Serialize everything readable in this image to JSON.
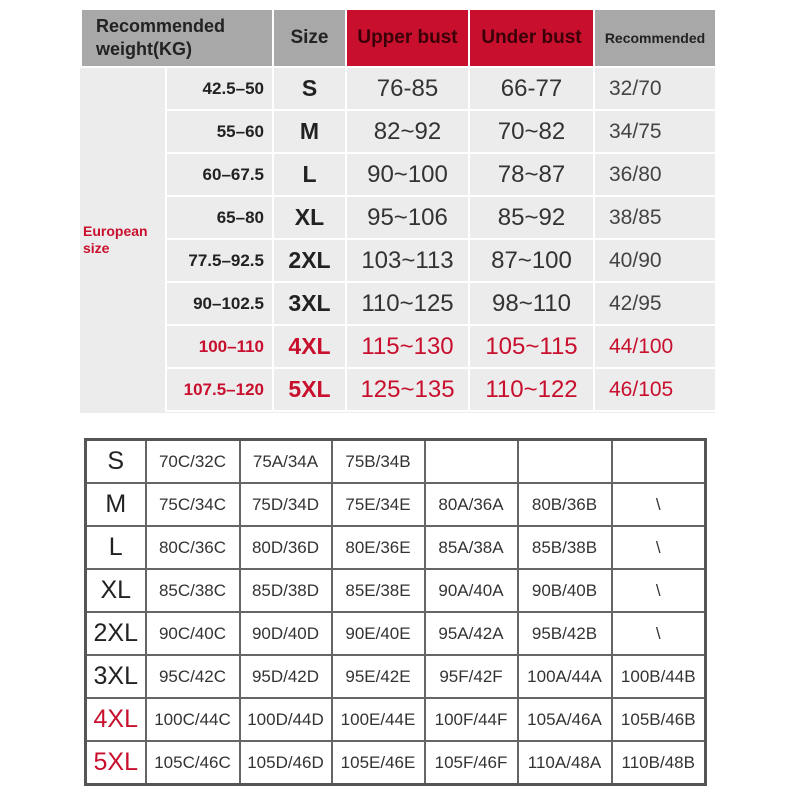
{
  "size_chart": {
    "headers": {
      "weight": "Recommended weight(KG)",
      "size": "Size",
      "upper_bust": "Upper bust",
      "under_bust": "Under bust",
      "recommended": "Recommended"
    },
    "region_label": "European size",
    "rows": [
      {
        "weight": "42.5–50",
        "size": "S",
        "upper": "76-85",
        "under": "66-77",
        "rec": "32/70"
      },
      {
        "weight": "55–60",
        "size": "M",
        "upper": "82~92",
        "under": "70~82",
        "rec": "34/75"
      },
      {
        "weight": "60–67.5",
        "size": "L",
        "upper": "90~100",
        "under": "78~87",
        "rec": "36/80"
      },
      {
        "weight": "65–80",
        "size": "XL",
        "upper": "95~106",
        "under": "85~92",
        "rec": "38/85"
      },
      {
        "weight": "77.5–92.5",
        "size": "2XL",
        "upper": "103~113",
        "under": "87~100",
        "rec": "40/90"
      },
      {
        "weight": "90–102.5",
        "size": "3XL",
        "upper": "110~125",
        "under": "98~110",
        "rec": "42/95"
      },
      {
        "weight": "100–110",
        "size": "4XL",
        "upper": "115~130",
        "under": "105~115",
        "rec": "44/100",
        "highlight": true
      },
      {
        "weight": "107.5–120",
        "size": "5XL",
        "upper": "125~135",
        "under": "110~122",
        "rec": "46/105",
        "highlight": true
      }
    ]
  },
  "bra_table": {
    "rows": [
      {
        "size": "S",
        "cells": [
          "70C/32C",
          "75A/34A",
          "75B/34B",
          "",
          "",
          ""
        ]
      },
      {
        "size": "M",
        "cells": [
          "75C/34C",
          "75D/34D",
          "75E/34E",
          "80A/36A",
          "80B/36B",
          "\\"
        ]
      },
      {
        "size": "L",
        "cells": [
          "80C/36C",
          "80D/36D",
          "80E/36E",
          "85A/38A",
          "85B/38B",
          "\\"
        ]
      },
      {
        "size": "XL",
        "cells": [
          "85C/38C",
          "85D/38D",
          "85E/38E",
          "90A/40A",
          "90B/40B",
          "\\"
        ]
      },
      {
        "size": "2XL",
        "cells": [
          "90C/40C",
          "90D/40D",
          "90E/40E",
          "95A/42A",
          "95B/42B",
          "\\"
        ]
      },
      {
        "size": "3XL",
        "cells": [
          "95C/42C",
          "95D/42D",
          "95E/42E",
          "95F/42F",
          "100A/44A",
          "100B/44B"
        ]
      },
      {
        "size": "4XL",
        "cells": [
          "100C/44C",
          "100D/44D",
          "100E/44E",
          "100F/44F",
          "105A/46A",
          "105B/46B"
        ],
        "highlight": true
      },
      {
        "size": "5XL",
        "cells": [
          "105C/46C",
          "105D/46D",
          "105E/46E",
          "105F/46F",
          "110A/48A",
          "110B/48B"
        ],
        "highlight": true
      }
    ]
  },
  "colors": {
    "accent_red": "#c8102e",
    "header_gray": "#a8a8a8",
    "cell_bg": "#ececec"
  }
}
